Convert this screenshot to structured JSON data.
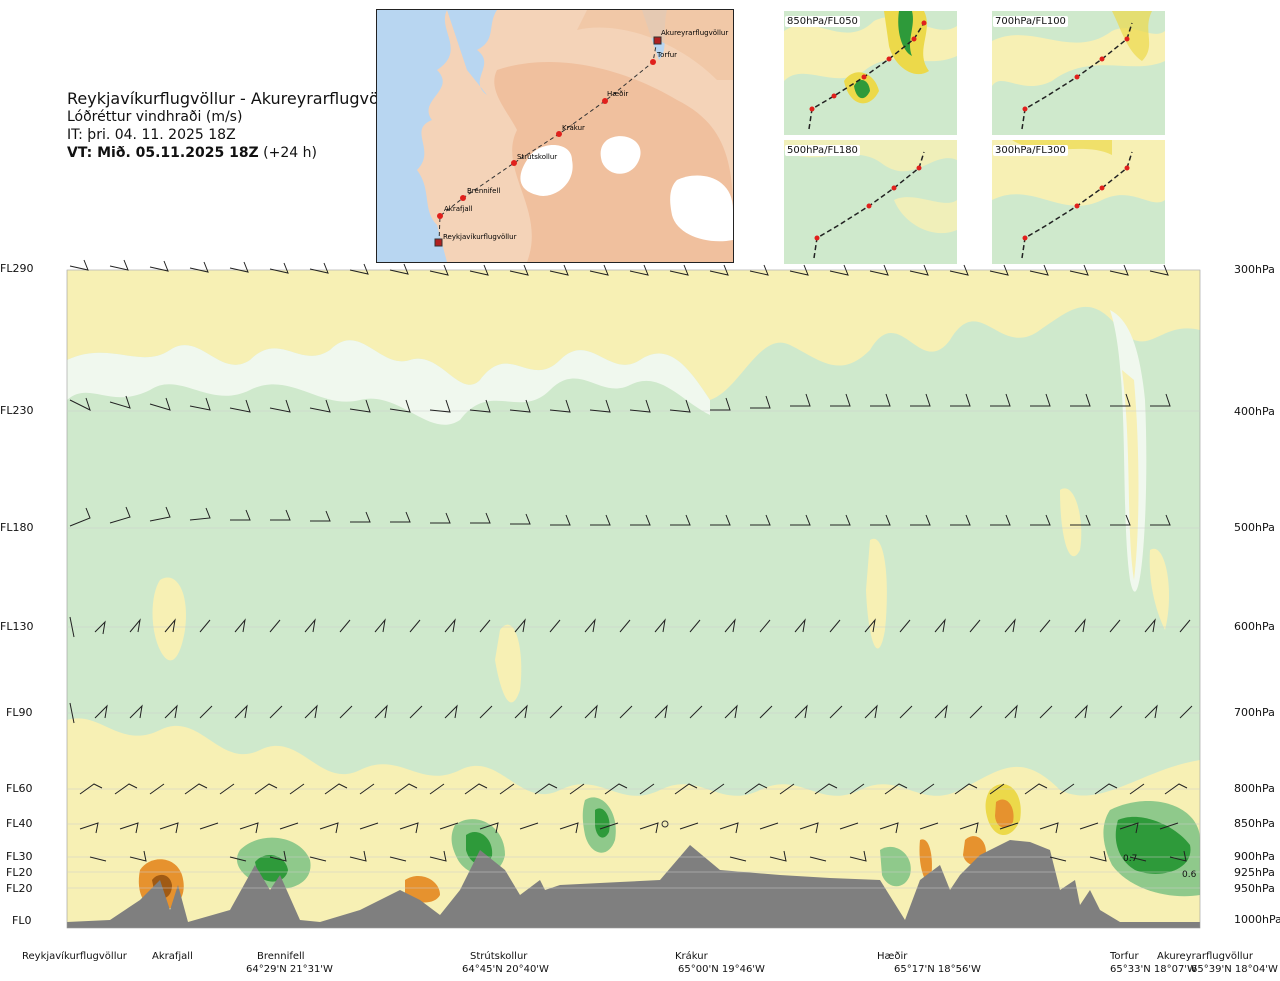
{
  "header": {
    "route_title": "Reykjavíkurflugvöllur - Akureyrarflugvöllur",
    "subtitle": "Lóðréttur vindhraði (m/s)",
    "issue_time": "IT: þri. 04. 11. 2025 18Z",
    "valid_label": "VT: Mið. 05.11.2025 18Z",
    "valid_offset": "(+24 h)"
  },
  "route_map": {
    "waypoints": [
      {
        "name": "Reykjavíkurflugvöllur",
        "kind": "airport"
      },
      {
        "name": "Akrafjall",
        "kind": "point"
      },
      {
        "name": "Brennifell",
        "kind": "point"
      },
      {
        "name": "Strútskollur",
        "kind": "point"
      },
      {
        "name": "Krákur",
        "kind": "point"
      },
      {
        "name": "Hæðir",
        "kind": "point"
      },
      {
        "name": "Torfur",
        "kind": "point"
      },
      {
        "name": "Akureyrarflugvöllur",
        "kind": "airport"
      }
    ]
  },
  "level_maps": [
    {
      "label": "850hPa/FL050"
    },
    {
      "label": "700hPa/FL100"
    },
    {
      "label": "500hPa/FL180"
    },
    {
      "label": "300hPa/FL300"
    }
  ],
  "flight_levels": [
    {
      "fl": "FL290",
      "hpa": "300hPa"
    },
    {
      "fl": "FL230",
      "hpa": "400hPa"
    },
    {
      "fl": "FL180",
      "hpa": "500hPa"
    },
    {
      "fl": "FL130",
      "hpa": "600hPa"
    },
    {
      "fl": "FL90",
      "hpa": "700hPa"
    },
    {
      "fl": "FL60",
      "hpa": "800hPa"
    },
    {
      "fl": "FL40",
      "hpa": "850hPa"
    },
    {
      "fl": "FL30",
      "hpa": "900hPa"
    },
    {
      "fl": "FL20",
      "hpa": "925hPa"
    },
    {
      "fl": "FL20",
      "hpa": "950hPa"
    },
    {
      "fl": "FL0",
      "hpa": "1000hPa"
    }
  ],
  "waypoint_axis": [
    {
      "name": "Reykjavíkurflugvöllur",
      "coord": ""
    },
    {
      "name": "Akrafjall",
      "coord": ""
    },
    {
      "name": "Brennifell",
      "coord": "64°29'N 21°31'W"
    },
    {
      "name": "Strútskollur",
      "coord": "64°45'N 20°40'W"
    },
    {
      "name": "Krákur",
      "coord": "65°00'N 19°46'W"
    },
    {
      "name": "Hæðir",
      "coord": "65°17'N 18°56'W"
    },
    {
      "name": "Torfur",
      "coord": "65°33'N 18°07'W"
    },
    {
      "name": "Akureyrarflugvöllur",
      "coord": "65°39'N 18°04'W"
    }
  ],
  "annotations": [
    {
      "text": "0.7"
    },
    {
      "text": "0.6"
    }
  ],
  "colors": {
    "terrain": "#7f7f7f",
    "green_light": "#cfe9cc",
    "green_mid": "#8fc98b",
    "green_dark": "#2e9a3a",
    "yellow_light": "#f7f0b4",
    "yellow_mid": "#ecd94a",
    "orange": "#e6922e",
    "brown": "#a05a14",
    "white_band": "#f0f8ee",
    "sea": "#b8d6f1",
    "land": "#f4d3b8",
    "route": "#333333",
    "point": "#e0201c"
  }
}
